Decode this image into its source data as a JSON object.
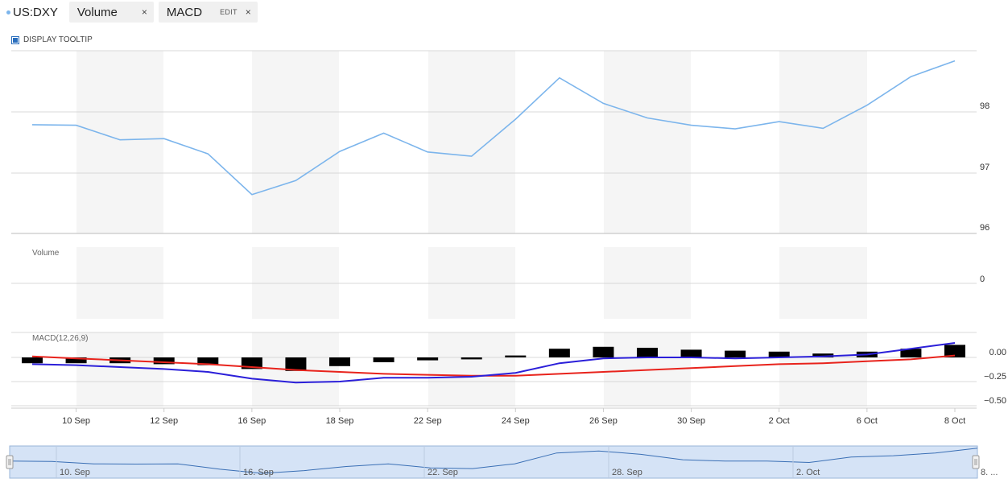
{
  "tabs": {
    "ticker": "US:DXY",
    "volume_label": "Volume",
    "macd_label": "MACD",
    "macd_edit": "EDIT",
    "close_glyph": "×"
  },
  "tooltip": {
    "label": "DISPLAY TOOLTIP",
    "checked": true
  },
  "colors": {
    "price_line": "#7cb5ec",
    "macd_line": "#2b1fd9",
    "signal_line": "#e8231c",
    "histogram": "#000000",
    "band": "#f5f5f5",
    "navigator_fill": "#d5e3f6"
  },
  "chart_data": [
    {
      "type": "line",
      "name": "price",
      "x": [
        "9 Sep",
        "10 Sep",
        "11 Sep",
        "12 Sep",
        "13 Sep",
        "16 Sep",
        "17 Sep",
        "18 Sep",
        "19 Sep",
        "22 Sep",
        "23 Sep",
        "24 Sep",
        "25 Sep",
        "26 Sep",
        "29 Sep",
        "30 Sep",
        "1 Oct",
        "2 Oct",
        "3 Oct",
        "6 Oct",
        "7 Oct",
        "8 Oct"
      ],
      "values": [
        97.79,
        97.78,
        97.54,
        97.56,
        97.31,
        96.64,
        96.87,
        97.35,
        97.65,
        97.34,
        97.27,
        97.88,
        98.56,
        98.14,
        97.9,
        97.78,
        97.72,
        97.84,
        97.73,
        98.11,
        98.58,
        98.84
      ],
      "yticks": [
        "98",
        "97",
        "96"
      ],
      "ylim": [
        96.0,
        98.95
      ]
    },
    {
      "type": "bar",
      "name": "volume",
      "title": "Volume",
      "yticks": [
        "0"
      ]
    },
    {
      "type": "line",
      "title": "MACD(12,26,9)",
      "x": [
        "9 Sep",
        "10 Sep",
        "11 Sep",
        "12 Sep",
        "13 Sep",
        "16 Sep",
        "17 Sep",
        "18 Sep",
        "19 Sep",
        "22 Sep",
        "23 Sep",
        "24 Sep",
        "25 Sep",
        "26 Sep",
        "29 Sep",
        "30 Sep",
        "1 Oct",
        "2 Oct",
        "3 Oct",
        "6 Oct",
        "7 Oct",
        "8 Oct"
      ],
      "series": [
        {
          "role": "macd",
          "values": [
            -0.07,
            -0.08,
            -0.1,
            -0.12,
            -0.15,
            -0.22,
            -0.26,
            -0.25,
            -0.21,
            -0.21,
            -0.2,
            -0.16,
            -0.06,
            -0.01,
            0.0,
            0.0,
            -0.01,
            0.0,
            0.01,
            0.03,
            0.09,
            0.15
          ]
        },
        {
          "role": "signal",
          "values": [
            0.01,
            -0.01,
            -0.03,
            -0.05,
            -0.07,
            -0.1,
            -0.13,
            -0.15,
            -0.17,
            -0.18,
            -0.19,
            -0.19,
            -0.17,
            -0.15,
            -0.13,
            -0.11,
            -0.09,
            -0.07,
            -0.06,
            -0.04,
            -0.02,
            0.02
          ]
        },
        {
          "role": "histogram",
          "values": [
            -0.06,
            -0.06,
            -0.06,
            -0.07,
            -0.08,
            -0.12,
            -0.14,
            -0.09,
            -0.05,
            -0.03,
            -0.02,
            0.02,
            0.09,
            0.11,
            0.1,
            0.08,
            0.07,
            0.06,
            0.04,
            0.06,
            0.09,
            0.13
          ]
        }
      ],
      "yticks": [
        "0.00",
        "−0.25",
        "−0.50"
      ],
      "ylim": [
        -0.5,
        0.25
      ]
    }
  ],
  "xaxis": {
    "tick_labels": [
      "10 Sep",
      "12 Sep",
      "16 Sep",
      "18 Sep",
      "22 Sep",
      "24 Sep",
      "26 Sep",
      "30 Sep",
      "2 Oct",
      "6 Oct",
      "8 Oct"
    ]
  },
  "navigator": {
    "labels": [
      "10. Sep",
      "16. Sep",
      "22. Sep",
      "28. Sep",
      "2. Oct",
      "8. ..."
    ],
    "values": [
      97.8,
      97.78,
      97.6,
      97.58,
      97.6,
      97.2,
      96.9,
      97.1,
      97.4,
      97.6,
      97.3,
      97.25,
      97.6,
      98.4,
      98.55,
      98.3,
      97.9,
      97.8,
      97.8,
      97.7,
      98.1,
      98.2,
      98.4,
      98.75
    ]
  }
}
